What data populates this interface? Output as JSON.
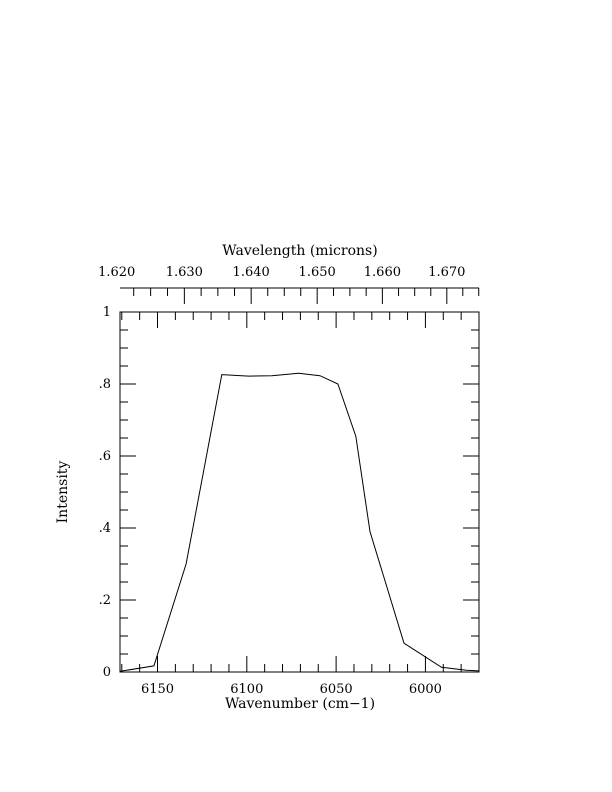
{
  "chart_data": {
    "type": "line",
    "title": "",
    "xlabel": "Wavenumber (cm−1)",
    "ylabel": "Intensity",
    "top_xlabel": "Wavelength (microns)",
    "x_reversed": true,
    "xlim": [
      6171,
      5970
    ],
    "ylim": [
      0,
      1
    ],
    "x_ticks": [
      6150,
      6100,
      6050,
      6000
    ],
    "x_tick_labels": [
      "6150",
      "6100",
      "6050",
      "6000"
    ],
    "y_ticks": [
      0,
      0.2,
      0.4,
      0.6,
      0.8,
      1
    ],
    "y_tick_labels": [
      "0",
      ".2",
      ".4",
      ".6",
      ".8",
      "1"
    ],
    "top_ticks_microns": [
      1.62,
      1.63,
      1.64,
      1.65,
      1.66,
      1.67
    ],
    "top_tick_labels": [
      "1.620",
      "1.630",
      "1.640",
      "1.650",
      "1.660",
      "1.670"
    ],
    "grid": false,
    "series": [
      {
        "x": [
          6171,
          6152,
          6134,
          6114,
          6099,
          6086,
          6071,
          6059,
          6049,
          6039,
          6031,
          6012,
          5991,
          5977,
          5970
        ],
        "y": [
          0.002,
          0.017,
          0.3,
          0.826,
          0.822,
          0.823,
          0.83,
          0.823,
          0.8,
          0.655,
          0.39,
          0.08,
          0.013,
          0.005,
          0.003
        ]
      }
    ]
  }
}
